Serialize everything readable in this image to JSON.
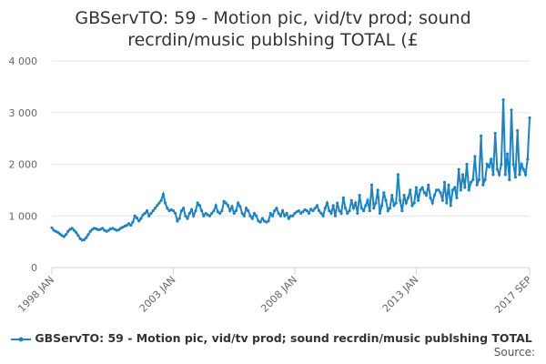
{
  "chart_data": {
    "type": "line",
    "title": "GBServTO: 59 - Motion pic, vid/tv prod; sound recrdin/music publshing TOTAL (£",
    "source": "Source:",
    "categories": [
      "1998 JAN",
      null,
      null,
      null,
      null,
      null,
      null,
      null,
      null,
      null,
      null,
      null,
      null,
      null,
      null,
      null,
      null,
      null,
      null,
      null,
      null,
      null,
      null,
      null,
      null,
      null,
      null,
      null,
      null,
      null,
      null,
      null,
      null,
      null,
      null,
      null,
      null,
      null,
      null,
      null,
      null,
      null,
      null,
      null,
      null,
      null,
      null,
      null,
      null,
      null,
      null,
      null,
      null,
      null,
      null,
      null,
      null,
      null,
      null,
      null,
      "2003 JAN",
      null,
      null,
      null,
      null,
      null,
      null,
      null,
      null,
      null,
      null,
      null,
      null,
      null,
      null,
      null,
      null,
      null,
      null,
      null,
      null,
      null,
      null,
      null,
      null,
      null,
      null,
      null,
      null,
      null,
      null,
      null,
      null,
      null,
      null,
      null,
      null,
      null,
      null,
      null,
      null,
      null,
      null,
      null,
      null,
      null,
      null,
      null,
      null,
      null,
      null,
      null,
      null,
      null,
      null,
      null,
      null,
      null,
      null,
      null,
      "2008 JAN",
      null,
      null,
      null,
      null,
      null,
      null,
      null,
      null,
      null,
      null,
      null,
      null,
      null,
      null,
      null,
      null,
      null,
      null,
      null,
      null,
      null,
      null,
      null,
      null,
      null,
      null,
      null,
      null,
      null,
      null,
      null,
      null,
      null,
      null,
      null,
      null,
      null,
      null,
      null,
      null,
      null,
      null,
      null,
      null,
      null,
      null,
      null,
      null,
      null,
      null,
      null,
      null,
      null,
      null,
      null,
      null,
      null,
      null,
      null,
      "2013 JAN",
      null,
      null,
      null,
      null,
      null,
      null,
      null,
      null,
      null,
      null,
      null,
      null,
      null,
      null,
      null,
      null,
      null,
      null,
      null,
      null,
      null,
      null,
      null,
      null,
      null,
      null,
      null,
      null,
      null,
      null,
      null,
      null,
      null,
      null,
      null,
      null,
      null,
      null,
      null,
      null,
      null,
      null,
      null,
      null,
      null,
      null,
      null,
      null,
      null,
      null,
      null,
      null,
      null,
      null,
      null,
      "2017 SEP"
    ],
    "series": [
      {
        "name": "GBServTO: 59 - Motion pic, vid/tv prod; sound recrdin/music publshing TOTAL (£",
        "color": "#1f83c0",
        "values": [
          770,
          720,
          700,
          680,
          650,
          620,
          600,
          640,
          700,
          740,
          760,
          720,
          680,
          620,
          560,
          530,
          540,
          580,
          640,
          700,
          740,
          760,
          750,
          730,
          740,
          760,
          720,
          700,
          720,
          750,
          760,
          740,
          720,
          730,
          760,
          780,
          800,
          820,
          850,
          820,
          880,
          1000,
          960,
          900,
          950,
          1020,
          1050,
          1100,
          1000,
          1050,
          1100,
          1150,
          1200,
          1250,
          1300,
          1420,
          1250,
          1150,
          1100,
          1120,
          1100,
          1050,
          900,
          950,
          1100,
          1150,
          1000,
          950,
          1050,
          1120,
          1000,
          1100,
          1250,
          1200,
          1100,
          1000,
          1050,
          1020,
          1000,
          1050,
          1100,
          1200,
          1080,
          1050,
          1100,
          1280,
          1250,
          1200,
          1100,
          1180,
          1050,
          1100,
          1250,
          1180,
          1050,
          1000,
          1150,
          1100,
          1000,
          950,
          1050,
          1000,
          900,
          880,
          950,
          900,
          880,
          900,
          1050,
          1000,
          1100,
          1150,
          1050,
          1000,
          1100,
          1000,
          1050,
          950,
          1000,
          1000,
          1050,
          1080,
          1100,
          1050,
          1080,
          1120,
          1100,
          1050,
          1130,
          1100,
          1150,
          1200,
          1100,
          1050,
          1000,
          1150,
          1250,
          1100,
          1050,
          1200,
          1000,
          1250,
          1100,
          1050,
          1350,
          1150,
          1050,
          1100,
          1300,
          1150,
          1250,
          1050,
          1400,
          1150,
          1100,
          1200,
          1300,
          1100,
          1600,
          1150,
          1250,
          1500,
          1050,
          1200,
          1450,
          1300,
          1100,
          1150,
          1400,
          1200,
          1250,
          1800,
          1300,
          1100,
          1400,
          1250,
          1350,
          1500,
          1200,
          1250,
          1550,
          1300,
          1500,
          1550,
          1450,
          1400,
          1600,
          1350,
          1250,
          1400,
          1500,
          1500,
          1450,
          1300,
          1650,
          1250,
          1600,
          1200,
          1500,
          1550,
          1350,
          1900,
          1500,
          1800,
          1550,
          2000,
          1500,
          1650,
          1700,
          2150,
          1600,
          1700,
          2550,
          1600,
          1700,
          2000,
          1950,
          2100,
          1800,
          2600,
          1900,
          1800,
          2000,
          3250,
          1800,
          2200,
          1700,
          3050,
          2000,
          1750,
          2650,
          1800,
          2000,
          1900,
          1800,
          2100,
          2900
        ]
      }
    ],
    "ylim": [
      0,
      4000
    ],
    "yticks": [
      0,
      {
        "value": 1000,
        "label": "1 000"
      },
      {
        "value": 2000,
        "label": "2 000"
      },
      {
        "value": 3000,
        "label": "3 000"
      },
      {
        "value": 4000,
        "label": "4 000"
      }
    ],
    "grid": true
  }
}
